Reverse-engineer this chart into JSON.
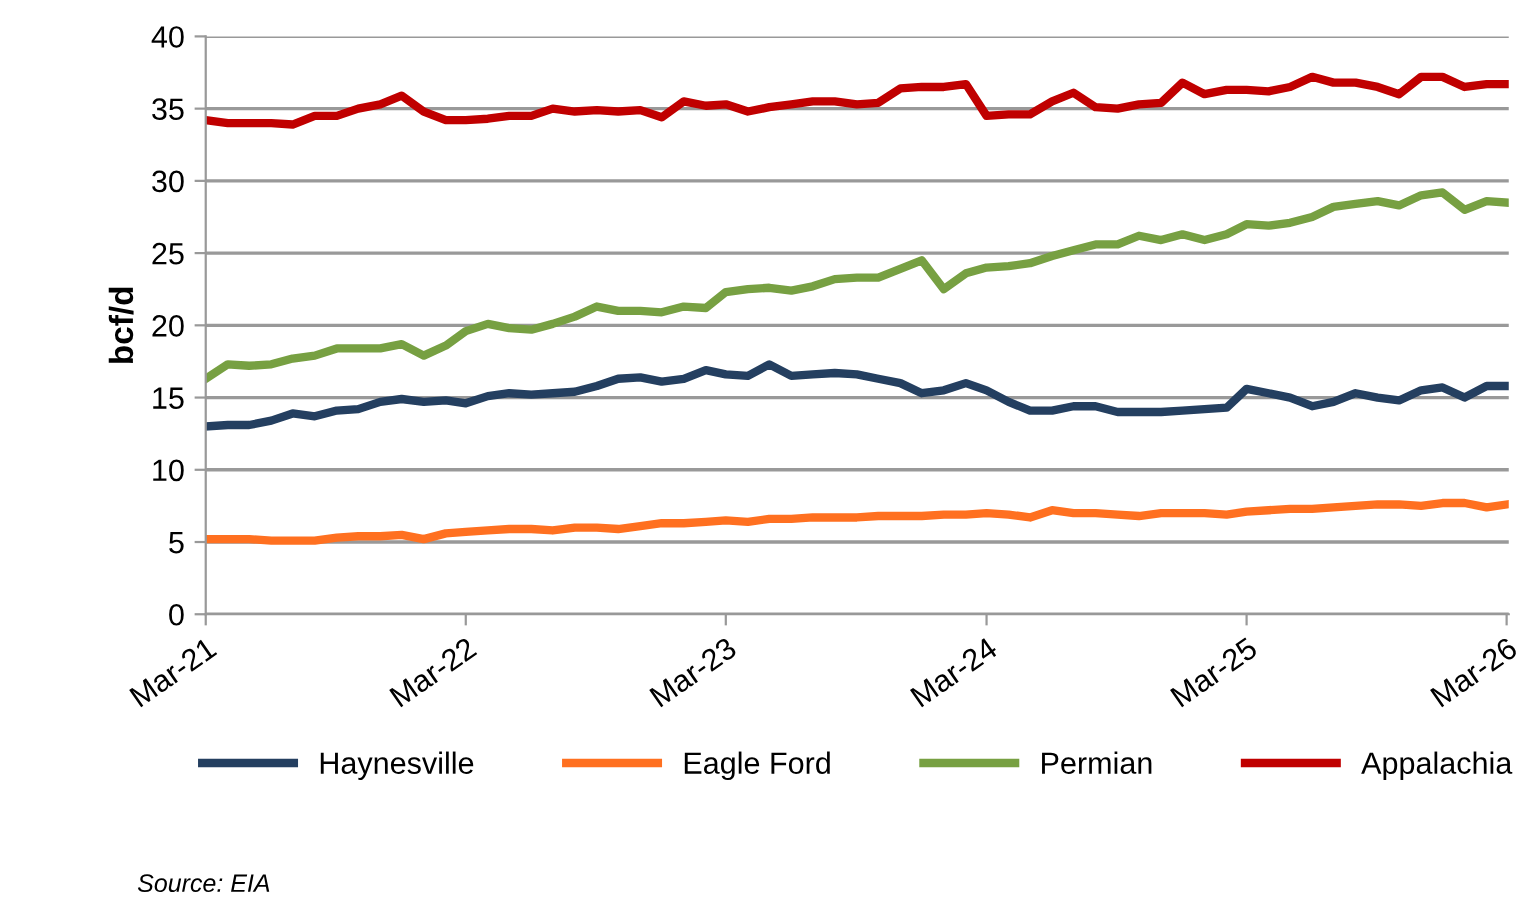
{
  "chart_data": {
    "type": "line",
    "ylabel": "bcf/d",
    "x": [
      "2021-03",
      "2021-04",
      "2021-05",
      "2021-06",
      "2021-07",
      "2021-08",
      "2021-09",
      "2021-10",
      "2021-11",
      "2021-12",
      "2022-01",
      "2022-02",
      "2022-03",
      "2022-04",
      "2022-05",
      "2022-06",
      "2022-07",
      "2022-08",
      "2022-09",
      "2022-10",
      "2022-11",
      "2022-12",
      "2023-01",
      "2023-02",
      "2023-03",
      "2023-04",
      "2023-05",
      "2023-06",
      "2023-07",
      "2023-08",
      "2023-09",
      "2023-10",
      "2023-11",
      "2023-12",
      "2024-01",
      "2024-02",
      "2024-03",
      "2024-04",
      "2024-05",
      "2024-06",
      "2024-07",
      "2024-08",
      "2024-09",
      "2024-10",
      "2024-11",
      "2024-12",
      "2025-01",
      "2025-02",
      "2025-03",
      "2025-04",
      "2025-05",
      "2025-06",
      "2025-07",
      "2025-08",
      "2025-09",
      "2025-10",
      "2025-11",
      "2025-12",
      "2026-01",
      "2026-02",
      "2026-03"
    ],
    "xlim": [
      "2021-03",
      "2026-03"
    ],
    "xticks": [
      {
        "value": "2021-03",
        "label": "Mar-21"
      },
      {
        "value": "2022-03",
        "label": "Mar-22"
      },
      {
        "value": "2023-03",
        "label": "Mar-23"
      },
      {
        "value": "2024-03",
        "label": "Mar-24"
      },
      {
        "value": "2025-03",
        "label": "Mar-25"
      },
      {
        "value": "2026-03",
        "label": "Mar-26"
      }
    ],
    "ylim": [
      0,
      40
    ],
    "yticks": [
      0,
      5,
      10,
      15,
      20,
      25,
      30,
      35,
      40
    ],
    "grid": "y",
    "legend": "bottom",
    "marker": "none",
    "line_style": "solid",
    "annotations": [
      "Source: EIA"
    ],
    "series": [
      {
        "name": "Haynesville",
        "color": "#243f60",
        "values": [
          13.0,
          13.1,
          13.1,
          13.4,
          13.9,
          13.7,
          14.1,
          14.2,
          14.7,
          14.9,
          14.7,
          14.8,
          14.6,
          15.1,
          15.3,
          15.2,
          15.3,
          15.4,
          15.8,
          16.3,
          16.4,
          16.1,
          16.3,
          16.9,
          16.6,
          16.5,
          17.3,
          16.5,
          16.6,
          16.7,
          16.6,
          16.3,
          16.0,
          15.3,
          15.5,
          16.0,
          15.5,
          14.7,
          14.1,
          14.1,
          14.4,
          14.4,
          14.0,
          14.0,
          14.0,
          14.1,
          14.2,
          14.3,
          15.6,
          15.3,
          15.0,
          14.4,
          14.7,
          15.3,
          15.0,
          14.8,
          15.5,
          15.7,
          15.0,
          15.8,
          15.8
        ]
      },
      {
        "name": "Eagle Ford",
        "color": "#ff7020",
        "values": [
          5.2,
          5.2,
          5.2,
          5.1,
          5.1,
          5.1,
          5.3,
          5.4,
          5.4,
          5.5,
          5.2,
          5.6,
          5.7,
          5.8,
          5.9,
          5.9,
          5.8,
          6.0,
          6.0,
          5.9,
          6.1,
          6.3,
          6.3,
          6.4,
          6.5,
          6.4,
          6.6,
          6.6,
          6.7,
          6.7,
          6.7,
          6.8,
          6.8,
          6.8,
          6.9,
          6.9,
          7.0,
          6.9,
          6.7,
          7.2,
          7.0,
          7.0,
          6.9,
          6.8,
          7.0,
          7.0,
          7.0,
          6.9,
          7.1,
          7.2,
          7.3,
          7.3,
          7.4,
          7.5,
          7.6,
          7.6,
          7.5,
          7.7,
          7.7,
          7.4,
          7.6
        ]
      },
      {
        "name": "Permian",
        "color": "#77a042",
        "values": [
          16.3,
          17.3,
          17.2,
          17.3,
          17.7,
          17.9,
          18.4,
          18.4,
          18.4,
          18.7,
          17.9,
          18.6,
          19.6,
          20.1,
          19.8,
          19.7,
          20.1,
          20.6,
          21.3,
          21.0,
          21.0,
          20.9,
          21.3,
          21.2,
          22.3,
          22.5,
          22.6,
          22.4,
          22.7,
          23.2,
          23.3,
          23.3,
          23.9,
          24.5,
          22.5,
          23.6,
          24.0,
          24.1,
          24.3,
          24.8,
          25.2,
          25.6,
          25.6,
          26.2,
          25.9,
          26.3,
          25.9,
          26.3,
          27.0,
          26.9,
          27.1,
          27.5,
          28.2,
          28.4,
          28.6,
          28.3,
          29.0,
          29.2,
          28.0,
          28.6,
          28.5
        ]
      },
      {
        "name": "Appalachia",
        "color": "#c00000",
        "values": [
          34.2,
          34.0,
          34.0,
          34.0,
          33.9,
          34.5,
          34.5,
          35.0,
          35.3,
          35.9,
          34.8,
          34.2,
          34.2,
          34.3,
          34.5,
          34.5,
          35.0,
          34.8,
          34.9,
          34.8,
          34.9,
          34.4,
          35.5,
          35.2,
          35.3,
          34.8,
          35.1,
          35.3,
          35.5,
          35.5,
          35.3,
          35.4,
          36.4,
          36.5,
          36.5,
          36.7,
          34.5,
          34.6,
          34.6,
          35.5,
          36.1,
          35.1,
          35.0,
          35.3,
          35.4,
          36.8,
          36.0,
          36.3,
          36.3,
          36.2,
          36.5,
          37.2,
          36.8,
          36.8,
          36.5,
          36.0,
          37.2,
          37.2,
          36.5,
          36.7,
          36.7
        ]
      }
    ]
  }
}
